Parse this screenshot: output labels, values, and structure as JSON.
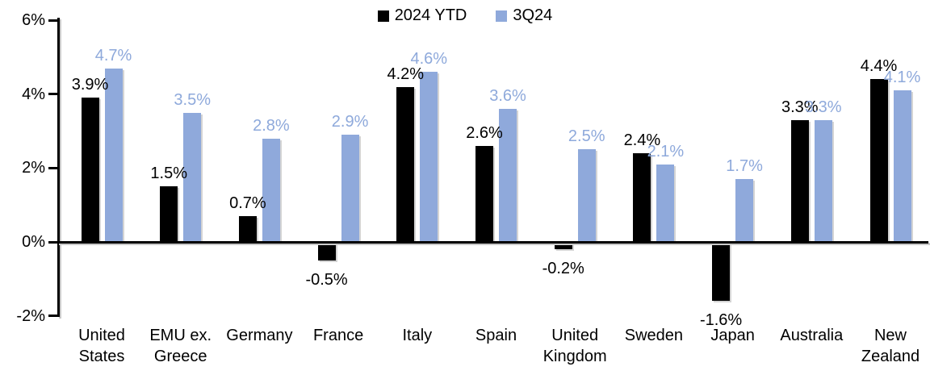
{
  "chart_data": {
    "type": "bar",
    "title": "",
    "xlabel": "",
    "ylabel": "",
    "categories": [
      "United States",
      "EMU ex. Greece",
      "Germany",
      "France",
      "Italy",
      "Spain",
      "United Kingdom",
      "Sweden",
      "Japan",
      "Australia",
      "New Zealand"
    ],
    "series": [
      {
        "name": "2024 YTD",
        "color": "#000000",
        "label_color": "#000000",
        "values": [
          3.9,
          1.5,
          0.7,
          -0.5,
          4.2,
          2.6,
          -0.2,
          2.4,
          -1.6,
          3.3,
          4.4
        ]
      },
      {
        "name": "3Q24",
        "color": "#8FA9DB",
        "label_color": "#8EA9DB",
        "values": [
          4.7,
          3.5,
          2.8,
          2.9,
          4.6,
          3.6,
          2.5,
          2.1,
          1.7,
          3.3,
          4.1
        ]
      }
    ],
    "value_suffix": "%",
    "value_decimals": 1,
    "y_ticks": [
      {
        "value": 6,
        "label": "6%"
      },
      {
        "value": 4,
        "label": "4%"
      },
      {
        "value": 2,
        "label": "2%"
      },
      {
        "value": 0,
        "label": "0%"
      },
      {
        "value": -2,
        "label": "-2%"
      }
    ],
    "ylim": [
      -2,
      6
    ],
    "grid": false,
    "legend_position": "top-center"
  }
}
